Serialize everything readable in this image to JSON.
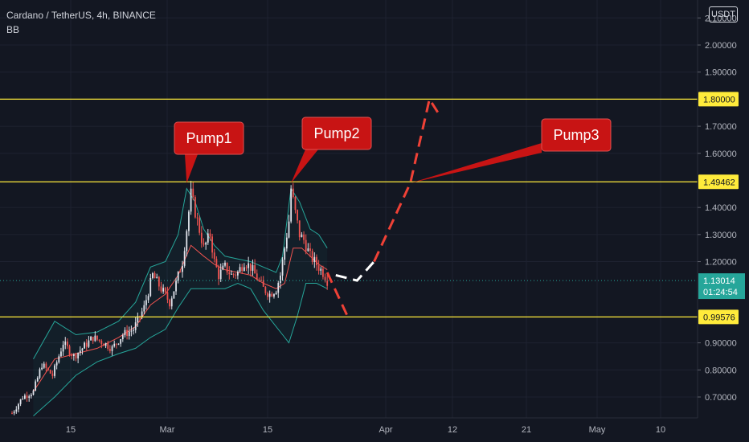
{
  "header": {
    "symbol_line": "Cardano / TetherUS, 4h, BINANCE",
    "indicator": "BB",
    "currency_button": "USDT"
  },
  "colors": {
    "background": "#131722",
    "grid": "#1e2230",
    "level_line": "#ffeb3b",
    "up_candle": "#e0e3eb",
    "down_candle": "#ef5350",
    "bb_band": "#26a69a",
    "bb_basis": "#ef5350",
    "callout": "#c81414",
    "current_price_badge": "#26a69a",
    "path_red": "#ef4136",
    "path_white": "#ffffff"
  },
  "chart_data": {
    "type": "candlestick",
    "title": "Cardano / TetherUS, 4h, BINANCE",
    "indicator": "BB",
    "x_ticks": [
      "15",
      "Mar",
      "15",
      "Apr",
      "12",
      "21",
      "May",
      "10"
    ],
    "y_ticks": [
      "0.70000",
      "0.80000",
      "0.90000",
      "1.20000",
      "1.30000",
      "1.40000",
      "1.60000",
      "1.70000",
      "1.90000",
      "2.00000"
    ],
    "y_tick_top_partial": "2.10000",
    "ylim": [
      0.63,
      2.15
    ],
    "grid": true,
    "price_history": [
      [
        0,
        0.64
      ],
      [
        5,
        0.7
      ],
      [
        10,
        0.72
      ],
      [
        14,
        0.82
      ],
      [
        19,
        0.78
      ],
      [
        24,
        0.9
      ],
      [
        29,
        0.85
      ],
      [
        33,
        0.88
      ],
      [
        38,
        0.92
      ],
      [
        43,
        0.9
      ],
      [
        47,
        0.88
      ],
      [
        52,
        0.93
      ],
      [
        57,
        0.95
      ],
      [
        62,
        1.03
      ],
      [
        66,
        1.15
      ],
      [
        70,
        1.1
      ],
      [
        74,
        1.05
      ],
      [
        77,
        1.12
      ],
      [
        80,
        1.2
      ],
      [
        82,
        1.32
      ],
      [
        84,
        1.45
      ],
      [
        87,
        1.35
      ],
      [
        90,
        1.25
      ],
      [
        93,
        1.3
      ],
      [
        95,
        1.2
      ],
      [
        97,
        1.15
      ],
      [
        100,
        1.18
      ],
      [
        103,
        1.15
      ],
      [
        106,
        1.16
      ],
      [
        109,
        1.2
      ],
      [
        112,
        1.18
      ],
      [
        115,
        1.14
      ],
      [
        118,
        1.1
      ],
      [
        121,
        1.08
      ],
      [
        124,
        1.1
      ],
      [
        126,
        1.15
      ],
      [
        128,
        1.25
      ],
      [
        130,
        1.35
      ],
      [
        131,
        1.47
      ],
      [
        133,
        1.38
      ],
      [
        135,
        1.3
      ],
      [
        137,
        1.28
      ],
      [
        140,
        1.22
      ],
      [
        143,
        1.19
      ],
      [
        146,
        1.16
      ],
      [
        148,
        1.13
      ]
    ],
    "bb_upper": [
      [
        10,
        0.84
      ],
      [
        20,
        0.98
      ],
      [
        30,
        0.93
      ],
      [
        40,
        0.94
      ],
      [
        50,
        0.98
      ],
      [
        58,
        1.05
      ],
      [
        65,
        1.18
      ],
      [
        72,
        1.2
      ],
      [
        78,
        1.3
      ],
      [
        82,
        1.47
      ],
      [
        86,
        1.42
      ],
      [
        90,
        1.32
      ],
      [
        95,
        1.26
      ],
      [
        100,
        1.22
      ],
      [
        106,
        1.21
      ],
      [
        112,
        1.2
      ],
      [
        118,
        1.18
      ],
      [
        124,
        1.16
      ],
      [
        127,
        1.22
      ],
      [
        131,
        1.47
      ],
      [
        135,
        1.42
      ],
      [
        140,
        1.32
      ],
      [
        144,
        1.3
      ],
      [
        148,
        1.25
      ]
    ],
    "bb_lower": [
      [
        10,
        0.63
      ],
      [
        20,
        0.7
      ],
      [
        30,
        0.78
      ],
      [
        40,
        0.83
      ],
      [
        50,
        0.86
      ],
      [
        58,
        0.88
      ],
      [
        65,
        0.92
      ],
      [
        72,
        0.95
      ],
      [
        78,
        1.03
      ],
      [
        84,
        1.1
      ],
      [
        90,
        1.1
      ],
      [
        95,
        1.1
      ],
      [
        100,
        1.1
      ],
      [
        106,
        1.12
      ],
      [
        112,
        1.1
      ],
      [
        118,
        1.02
      ],
      [
        124,
        0.96
      ],
      [
        127,
        0.93
      ],
      [
        130,
        0.9
      ],
      [
        134,
        1.0
      ],
      [
        138,
        1.12
      ],
      [
        143,
        1.12
      ],
      [
        148,
        1.1
      ]
    ],
    "bb_basis": [
      [
        10,
        0.72
      ],
      [
        20,
        0.84
      ],
      [
        30,
        0.86
      ],
      [
        40,
        0.88
      ],
      [
        50,
        0.92
      ],
      [
        58,
        0.96
      ],
      [
        65,
        1.04
      ],
      [
        72,
        1.08
      ],
      [
        78,
        1.15
      ],
      [
        84,
        1.26
      ],
      [
        90,
        1.22
      ],
      [
        95,
        1.19
      ],
      [
        100,
        1.17
      ],
      [
        106,
        1.16
      ],
      [
        112,
        1.15
      ],
      [
        118,
        1.12
      ],
      [
        124,
        1.1
      ],
      [
        128,
        1.12
      ],
      [
        132,
        1.25
      ],
      [
        136,
        1.25
      ],
      [
        140,
        1.22
      ],
      [
        144,
        1.19
      ],
      [
        148,
        1.17
      ]
    ],
    "projection_red_1": [
      [
        148,
        1.16
      ],
      [
        158,
        0.99
      ]
    ],
    "projection_white": [
      [
        152,
        1.15
      ],
      [
        162,
        1.13
      ],
      [
        170,
        1.2
      ]
    ],
    "projection_red_2": [
      [
        170,
        1.2
      ],
      [
        187,
        1.49
      ],
      [
        196,
        1.8
      ],
      [
        200,
        1.75
      ]
    ],
    "levels": [
      {
        "value": 1.8,
        "label": "1.80000"
      },
      {
        "value": 1.49462,
        "label": "1.49462"
      },
      {
        "value": 0.99576,
        "label": "0.99576"
      }
    ],
    "current_price": {
      "value": 1.13014,
      "label": "1.13014",
      "countdown": "01:24:54"
    },
    "annotations": [
      {
        "text": "Pump1",
        "points_to": [
          82,
          1.49
        ]
      },
      {
        "text": "Pump2",
        "points_to": [
          131,
          1.49
        ]
      },
      {
        "text": "Pump3",
        "points_to": [
          187,
          1.49
        ]
      }
    ]
  }
}
